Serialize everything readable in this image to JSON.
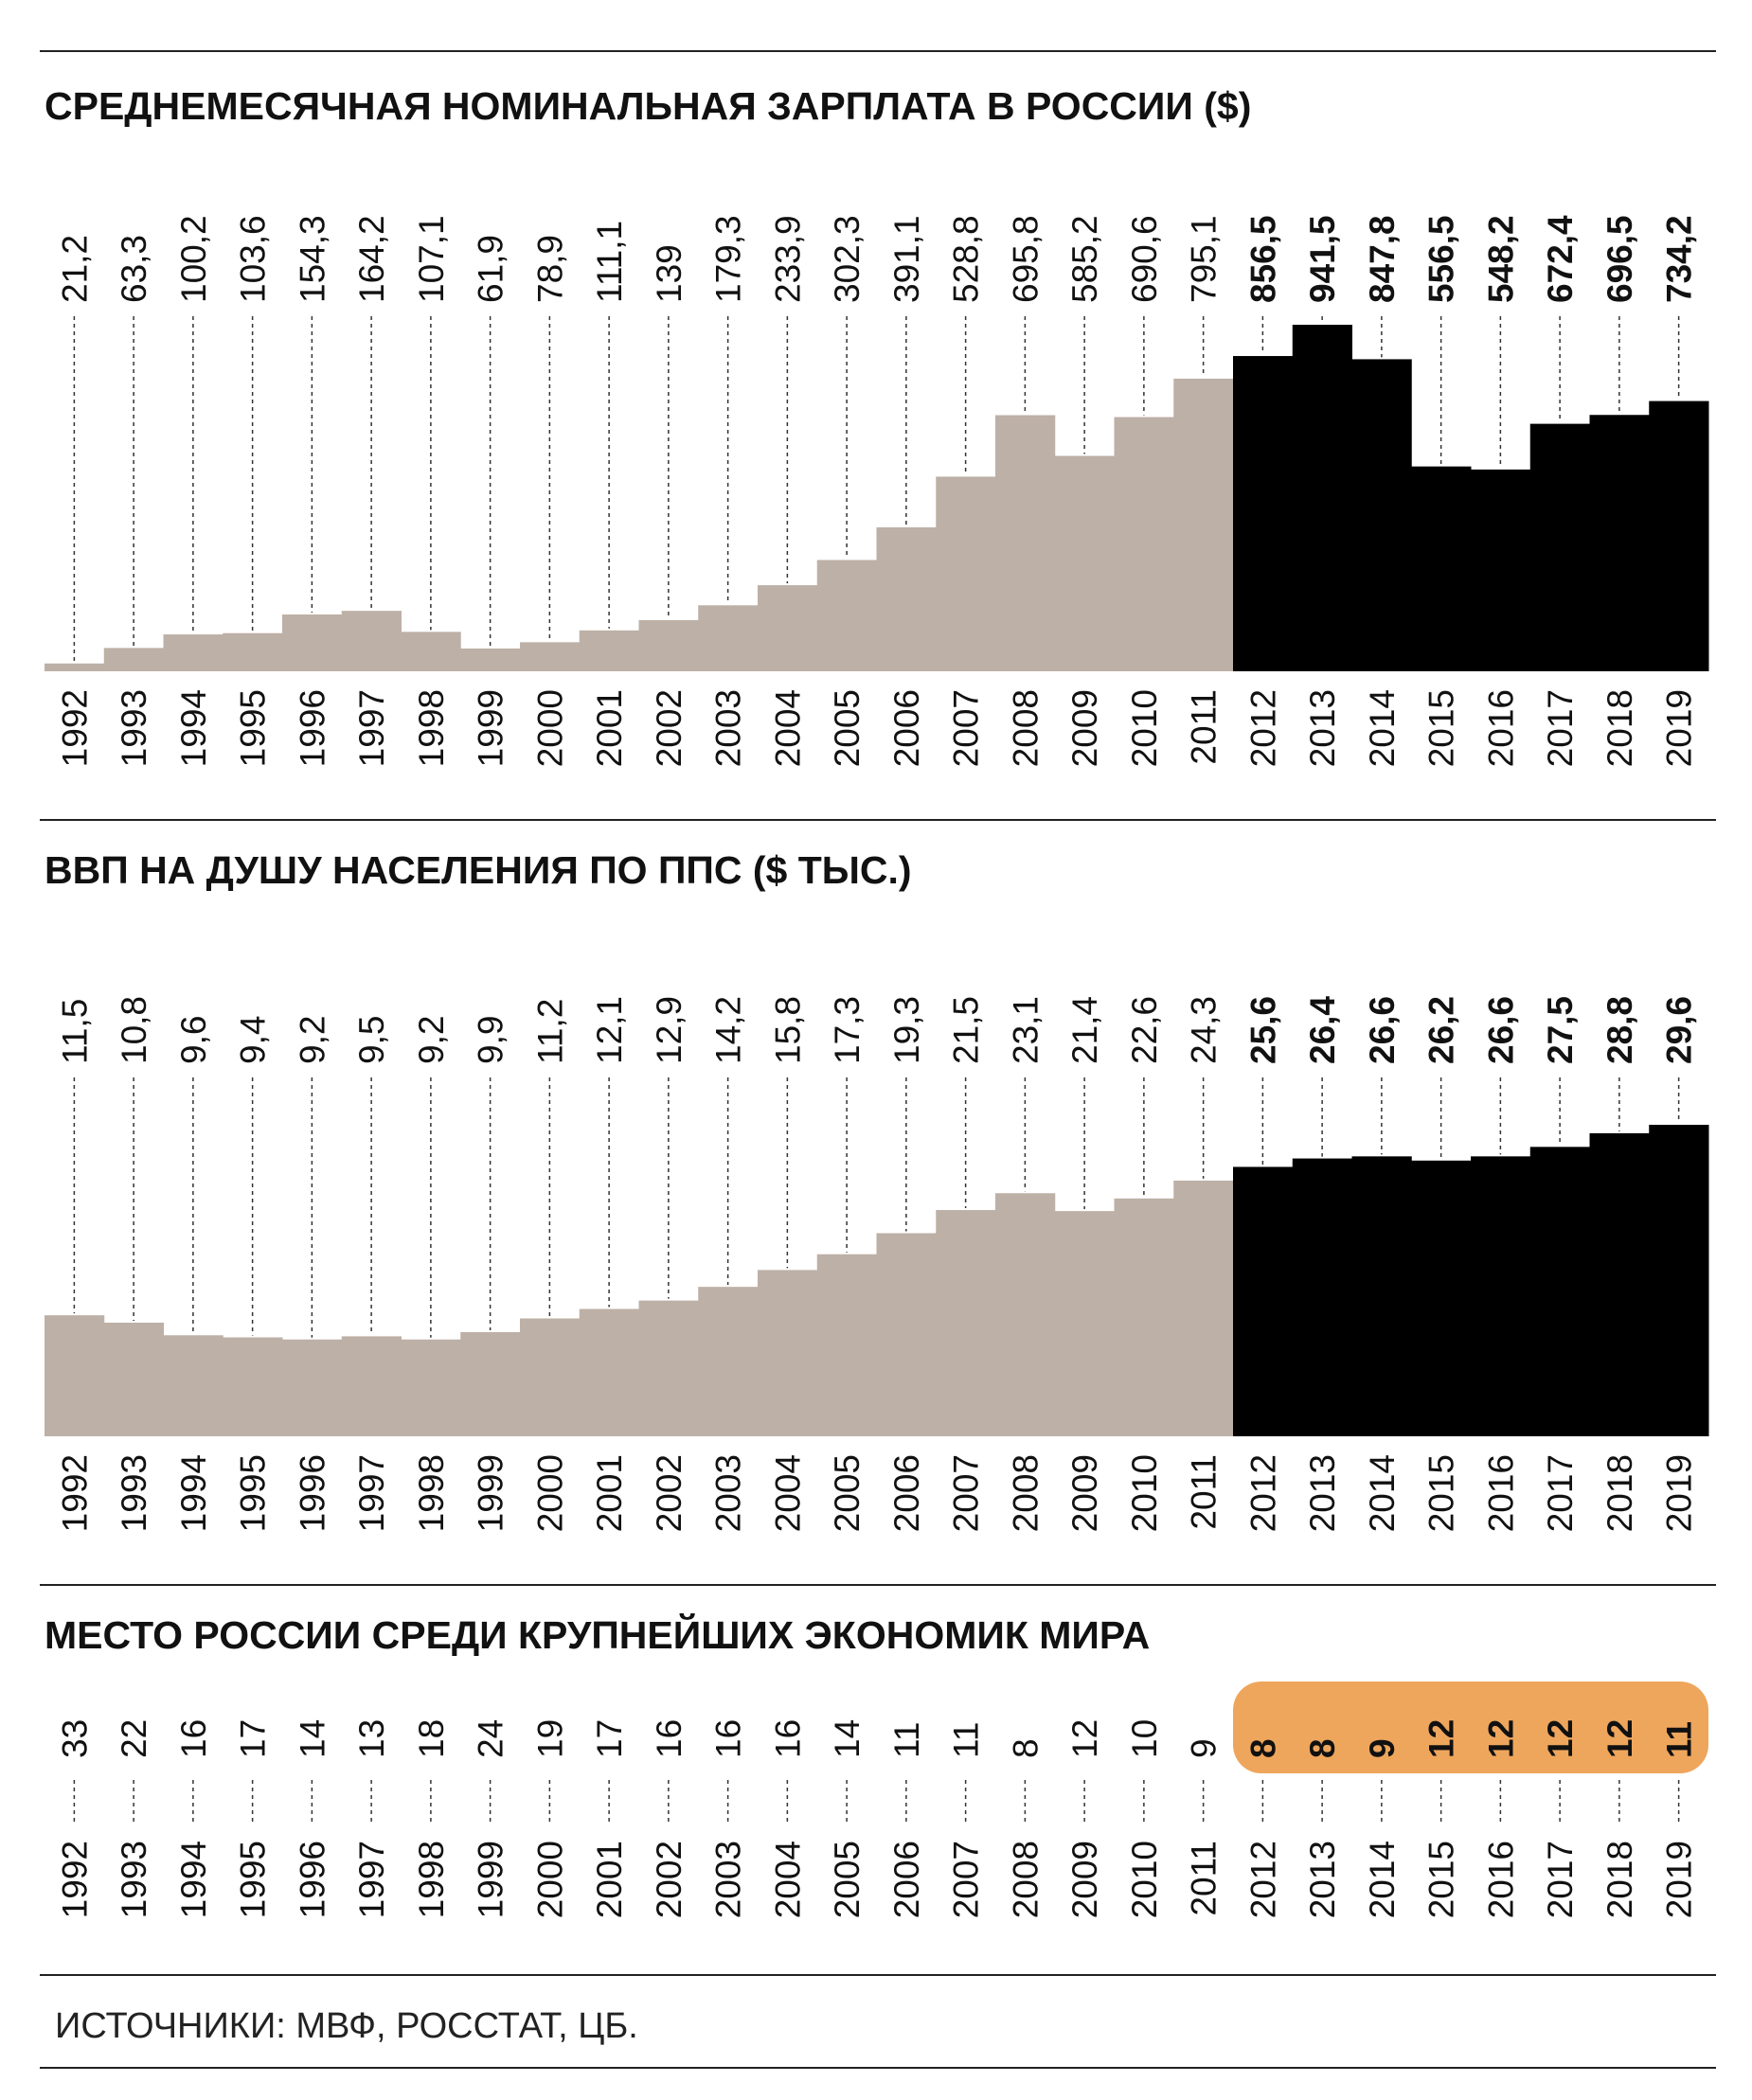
{
  "colors": {
    "past": "#bdb0a6",
    "recent": "#000000",
    "highlight": "#eea65c"
  },
  "source": "ИСТОЧНИКИ: МВФ, РОССТАТ, ЦБ.",
  "chart_data": [
    {
      "type": "bar",
      "title": "СРЕДНЕМЕСЯЧНАЯ НОМИНАЛЬНАЯ ЗАРПЛАТА В РОССИИ ($)",
      "categories": [
        "1992",
        "1993",
        "1994",
        "1995",
        "1996",
        "1997",
        "1998",
        "1999",
        "2000",
        "2001",
        "2002",
        "2003",
        "2004",
        "2005",
        "2006",
        "2007",
        "2008",
        "2009",
        "2010",
        "2011",
        "2012",
        "2013",
        "2014",
        "2015",
        "2016",
        "2017",
        "2018",
        "2019"
      ],
      "values": [
        21.2,
        63.3,
        100.2,
        103.6,
        154.3,
        164.2,
        107.1,
        61.9,
        78.9,
        111.1,
        139,
        179.3,
        233.9,
        302.3,
        391.1,
        528.8,
        695.8,
        585.2,
        690.6,
        795.1,
        856.5,
        941.5,
        847.8,
        556.5,
        548.2,
        672.4,
        696.5,
        734.2
      ],
      "highlight_from": "2012",
      "ylim": [
        0,
        941.5
      ]
    },
    {
      "type": "bar",
      "title": "ВВП НА ДУШУ НАСЕЛЕНИЯ ПО ППС ($ ТЫС.)",
      "categories": [
        "1992",
        "1993",
        "1994",
        "1995",
        "1996",
        "1997",
        "1998",
        "1999",
        "2000",
        "2001",
        "2002",
        "2003",
        "2004",
        "2005",
        "2006",
        "2007",
        "2008",
        "2009",
        "2010",
        "2011",
        "2012",
        "2013",
        "2014",
        "2015",
        "2016",
        "2017",
        "2018",
        "2019"
      ],
      "values": [
        11.5,
        10.8,
        9.6,
        9.4,
        9.2,
        9.5,
        9.2,
        9.9,
        11.2,
        12.1,
        12.9,
        14.2,
        15.8,
        17.3,
        19.3,
        21.5,
        23.1,
        21.4,
        22.6,
        24.3,
        25.6,
        26.4,
        26.6,
        26.2,
        26.6,
        27.5,
        28.8,
        29.6
      ],
      "highlight_from": "2012",
      "ylim": [
        0,
        29.6
      ]
    },
    {
      "type": "table",
      "title": "МЕСТО РОССИИ СРЕДИ КРУПНЕЙШИХ ЭКОНОМИК МИРА",
      "categories": [
        "1992",
        "1993",
        "1994",
        "1995",
        "1996",
        "1997",
        "1998",
        "1999",
        "2000",
        "2001",
        "2002",
        "2003",
        "2004",
        "2005",
        "2006",
        "2007",
        "2008",
        "2009",
        "2010",
        "2011",
        "2012",
        "2013",
        "2014",
        "2015",
        "2016",
        "2017",
        "2018",
        "2019"
      ],
      "values": [
        33,
        22,
        16,
        17,
        14,
        13,
        18,
        24,
        19,
        17,
        16,
        16,
        16,
        14,
        11,
        11,
        8,
        12,
        10,
        9,
        8,
        8,
        9,
        12,
        12,
        12,
        12,
        11
      ],
      "highlight_from": "2012"
    }
  ]
}
